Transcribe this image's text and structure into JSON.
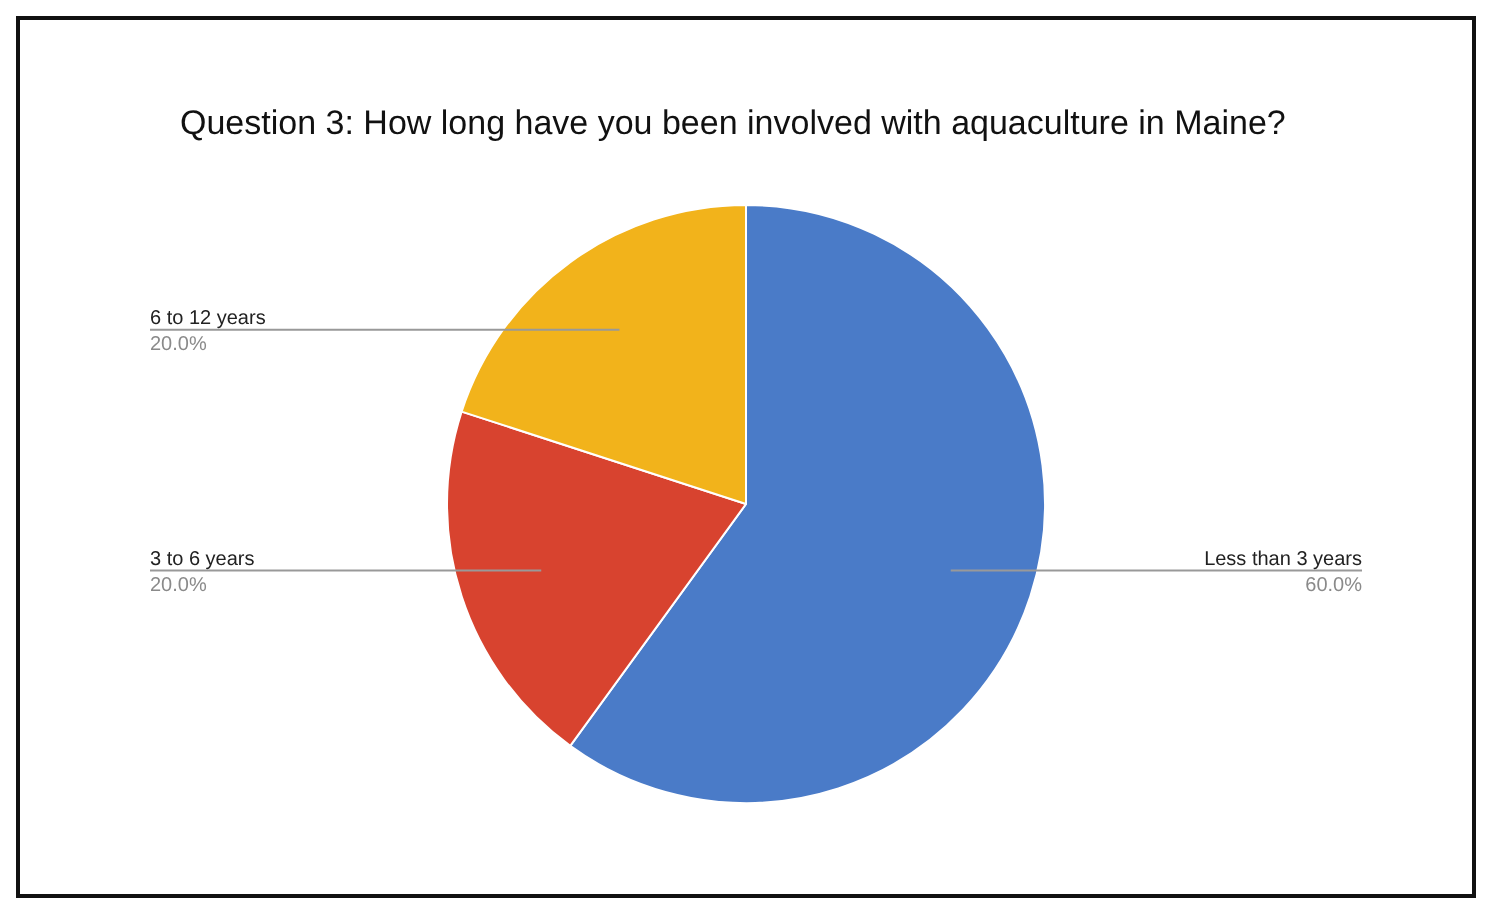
{
  "chart_data": {
    "type": "pie",
    "title": "Question 3: How long have you been involved with aquaculture in Maine?",
    "categories": [
      "Less than 3 years",
      "3 to 6 years",
      "6 to 12 years"
    ],
    "values": [
      60,
      20,
      20
    ],
    "colors": [
      "#4a7bc8",
      "#d8432f",
      "#f2b31b"
    ],
    "value_labels": [
      "60.0%",
      "20.0%",
      "20.0%"
    ],
    "legend": false
  }
}
